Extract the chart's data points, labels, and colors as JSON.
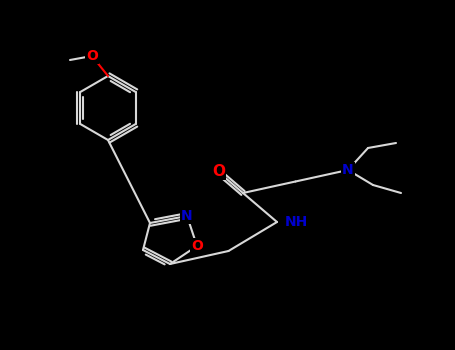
{
  "background_color": "#000000",
  "bond_color": "#d8d8d8",
  "atom_colors": {
    "O": "#ff0000",
    "N": "#0000cd"
  },
  "figsize": [
    4.55,
    3.5
  ],
  "dpi": 100,
  "lw": 1.5,
  "fontsize": 10
}
